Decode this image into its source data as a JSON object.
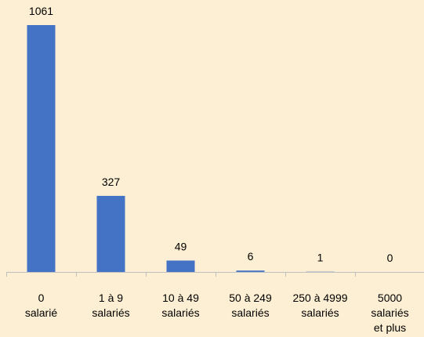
{
  "chart_data": {
    "type": "bar",
    "categories": [
      "0\nsalarié",
      "1 à 9\nsalariés",
      "10 à 49\nsalariés",
      "50 à 249\nsalariés",
      "250 à 4999\nsalariés",
      "5000\nsalariés\net plus"
    ],
    "values": [
      1061,
      327,
      49,
      6,
      1,
      0
    ],
    "color": "#4472c4"
  }
}
